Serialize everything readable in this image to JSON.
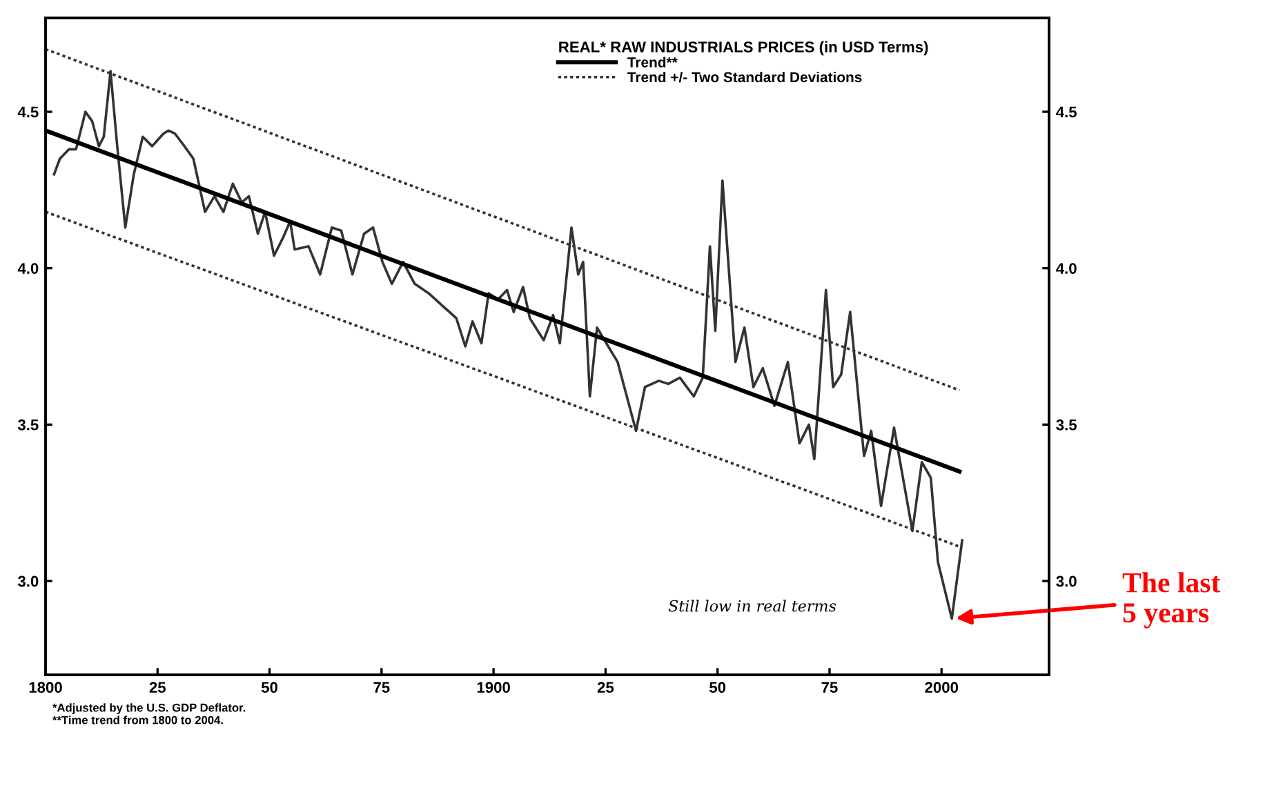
{
  "chart_data": {
    "type": "line",
    "legend_title": "REAL* RAW INDUSTRIALS PRICES (in USD Terms)",
    "xlim": [
      1800,
      2024
    ],
    "ylim": [
      2.7,
      4.8
    ],
    "xticks": [
      1800,
      {
        "value": 1825,
        "label": "25"
      },
      {
        "value": 1850,
        "label": "50"
      },
      {
        "value": 1875,
        "label": "75"
      },
      1900,
      {
        "value": 1925,
        "label": "25"
      },
      {
        "value": 1950,
        "label": "50"
      },
      {
        "value": 1975,
        "label": "75"
      },
      2000
    ],
    "yticks": [
      {
        "value": 3,
        "label": "3.0"
      },
      3.5,
      {
        "value": 4,
        "label": "4.0"
      },
      4.5
    ],
    "y2lim": [
      2.7,
      4.8
    ],
    "y2ticks": [
      {
        "value": 3,
        "label": "3.0"
      },
      3.5,
      {
        "value": 4,
        "label": "4.0"
      },
      4.5
    ],
    "grid": false,
    "legend": "top right",
    "marker": "none",
    "series": [
      {
        "color": "#333333",
        "line_style": "solid",
        "x": [
          1801.9,
          1803.2,
          1805.2,
          1806.8,
          1808.9,
          1810.4,
          1811.9,
          1813,
          1814.5,
          1816,
          1817.8,
          1819.7,
          1821.7,
          1823.8,
          1826.3,
          1827.4,
          1828.9,
          1831,
          1833,
          1835.6,
          1837.7,
          1839.7,
          1841.8,
          1843.8,
          1845.4,
          1847.4,
          1849,
          1851,
          1853.1,
          1854.6,
          1855.6,
          1858.7,
          1861.3,
          1863.9,
          1866,
          1868.5,
          1871.1,
          1873.1,
          1875.2,
          1877.3,
          1879.8,
          1882.4,
          1885.5,
          1888.6,
          1891.7,
          1893.7,
          1895.3,
          1897.3,
          1898.9,
          1901,
          1903,
          1904.5,
          1906.6,
          1908.1,
          1911.2,
          1913.3,
          1914.8,
          1917.4,
          1918.9,
          1920,
          1921.5,
          1923.1,
          1925.6,
          1927.7,
          1931.8,
          1933.8,
          1936.9,
          1939,
          1941.6,
          1944.7,
          1946.7,
          1948.3,
          1949.5,
          1951.1,
          1954,
          1956,
          1958,
          1960.1,
          1962.7,
          1965.7,
          1968.3,
          1970.4,
          1971.6,
          1974.2,
          1975.8,
          1977.6,
          1979.6,
          1982.7,
          1984.3,
          1986.5,
          1989.4,
          1993.5,
          1995.6,
          1997.6,
          1999.2,
          2002.3,
          2004.6
        ],
        "values": [
          4.3,
          4.35,
          4.38,
          4.38,
          4.5,
          4.47,
          4.39,
          4.42,
          4.63,
          4.39,
          4.13,
          4.3,
          4.42,
          4.39,
          4.43,
          4.44,
          4.43,
          4.39,
          4.35,
          4.18,
          4.23,
          4.18,
          4.27,
          4.21,
          4.23,
          4.11,
          4.18,
          4.04,
          4.1,
          4.15,
          4.06,
          4.07,
          3.98,
          4.13,
          4.12,
          3.98,
          4.11,
          4.13,
          4.02,
          3.95,
          4.02,
          3.95,
          3.92,
          3.88,
          3.84,
          3.75,
          3.83,
          3.76,
          3.92,
          3.9,
          3.93,
          3.86,
          3.94,
          3.84,
          3.77,
          3.85,
          3.76,
          4.13,
          3.98,
          4.02,
          3.59,
          3.81,
          3.75,
          3.7,
          3.48,
          3.62,
          3.64,
          3.63,
          3.65,
          3.59,
          3.65,
          4.07,
          3.8,
          4.28,
          3.7,
          3.81,
          3.62,
          3.68,
          3.56,
          3.7,
          3.44,
          3.5,
          3.39,
          3.93,
          3.62,
          3.66,
          3.86,
          3.4,
          3.48,
          3.24,
          3.49,
          3.16,
          3.38,
          3.33,
          3.06,
          2.88,
          3.13
        ]
      },
      {
        "name": "Trend**",
        "color": "#000000",
        "line_style": "solid",
        "x": [
          1800,
          2004
        ],
        "values": [
          4.44,
          3.35
        ]
      },
      {
        "name": "Trend +/- Two Standard Deviations",
        "color": "#333333",
        "line_style": "dotted",
        "x": [
          1800,
          2004
        ],
        "values": [
          4.7,
          3.61
        ]
      },
      {
        "color": "#333333",
        "line_style": "dotted",
        "x": [
          1800,
          2004
        ],
        "values": [
          4.18,
          3.11
        ]
      }
    ],
    "annotations": [
      "Still low in real terms",
      {
        "text": "The last\n5 years",
        "x": 2002.3,
        "y": 2.88
      },
      "*Adjusted by the U.S. GDP Deflator.\n**Time trend from 1800 to 2004."
    ]
  }
}
